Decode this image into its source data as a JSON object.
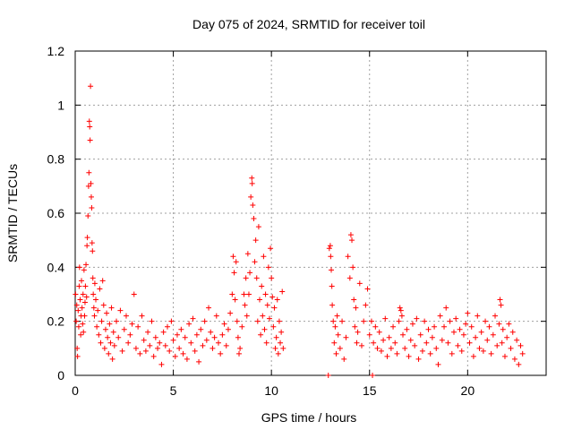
{
  "chart_data": {
    "type": "scatter",
    "title": "Day 075 of 2024, SRMTID for receiver toil",
    "xlabel": "GPS time / hours",
    "ylabel": "SRMTID / TECUs",
    "xlim": [
      0,
      24
    ],
    "ylim": [
      0,
      1.2
    ],
    "xticks": [
      0,
      5,
      10,
      15,
      20
    ],
    "xtick_labels": [
      "0",
      "5",
      "10",
      "15",
      "20"
    ],
    "yticks": [
      0,
      0.2,
      0.4,
      0.6,
      0.8,
      1,
      1.2
    ],
    "ytick_labels": [
      "0",
      "0.2",
      "0.4",
      "0.6",
      "0.8",
      "1",
      "1.2"
    ],
    "grid": true,
    "marker": "+",
    "color": "#ff0000",
    "series": [
      {
        "name": "SRMTID",
        "points": [
          [
            0.02,
            0.3
          ],
          [
            0.05,
            0.2
          ],
          [
            0.08,
            0.26
          ],
          [
            0.1,
            0.1
          ],
          [
            0.12,
            0.07
          ],
          [
            0.15,
            0.24
          ],
          [
            0.18,
            0.18
          ],
          [
            0.2,
            0.33
          ],
          [
            0.22,
            0.4
          ],
          [
            0.25,
            0.28
          ],
          [
            0.28,
            0.15
          ],
          [
            0.3,
            0.22
          ],
          [
            0.32,
            0.35
          ],
          [
            0.35,
            0.25
          ],
          [
            0.38,
            0.19
          ],
          [
            0.4,
            0.3
          ],
          [
            0.42,
            0.16
          ],
          [
            0.45,
            0.39
          ],
          [
            0.48,
            0.22
          ],
          [
            0.5,
            0.27
          ],
          [
            0.52,
            0.33
          ],
          [
            0.55,
            0.41
          ],
          [
            0.58,
            0.29
          ],
          [
            0.6,
            0.48
          ],
          [
            0.62,
            0.51
          ],
          [
            0.65,
            0.59
          ],
          [
            0.68,
            0.7
          ],
          [
            0.7,
            0.75
          ],
          [
            0.72,
            0.94
          ],
          [
            0.74,
            0.92
          ],
          [
            0.76,
            0.87
          ],
          [
            0.78,
            1.07
          ],
          [
            0.8,
            0.71
          ],
          [
            0.82,
            0.66
          ],
          [
            0.84,
            0.62
          ],
          [
            0.86,
            0.49
          ],
          [
            0.88,
            0.46
          ],
          [
            0.9,
            0.36
          ],
          [
            0.92,
            0.3
          ],
          [
            0.95,
            0.25
          ],
          [
            0.98,
            0.22
          ],
          [
            1.0,
            0.34
          ],
          [
            1.05,
            0.28
          ],
          [
            1.1,
            0.18
          ],
          [
            1.15,
            0.24
          ],
          [
            1.2,
            0.15
          ],
          [
            1.25,
            0.32
          ],
          [
            1.3,
            0.12
          ],
          [
            1.35,
            0.2
          ],
          [
            1.4,
            0.35
          ],
          [
            1.45,
            0.26
          ],
          [
            1.5,
            0.1
          ],
          [
            1.55,
            0.17
          ],
          [
            1.6,
            0.23
          ],
          [
            1.65,
            0.14
          ],
          [
            1.7,
            0.08
          ],
          [
            1.75,
            0.19
          ],
          [
            1.8,
            0.12
          ],
          [
            1.85,
            0.25
          ],
          [
            1.9,
            0.06
          ],
          [
            1.95,
            0.16
          ],
          [
            2.0,
            0.11
          ],
          [
            2.1,
            0.2
          ],
          [
            2.2,
            0.14
          ],
          [
            2.3,
            0.24
          ],
          [
            2.4,
            0.09
          ],
          [
            2.5,
            0.17
          ],
          [
            2.6,
            0.22
          ],
          [
            2.7,
            0.12
          ],
          [
            2.8,
            0.15
          ],
          [
            2.9,
            0.19
          ],
          [
            3.0,
            0.3
          ],
          [
            3.1,
            0.1
          ],
          [
            3.2,
            0.18
          ],
          [
            3.3,
            0.08
          ],
          [
            3.4,
            0.22
          ],
          [
            3.5,
            0.13
          ],
          [
            3.6,
            0.09
          ],
          [
            3.7,
            0.16
          ],
          [
            3.8,
            0.11
          ],
          [
            3.9,
            0.2
          ],
          [
            4.0,
            0.07
          ],
          [
            4.1,
            0.14
          ],
          [
            4.2,
            0.1
          ],
          [
            4.3,
            0.12
          ],
          [
            4.4,
            0.04
          ],
          [
            4.5,
            0.16
          ],
          [
            4.6,
            0.11
          ],
          [
            4.7,
            0.18
          ],
          [
            4.8,
            0.09
          ],
          [
            4.9,
            0.2
          ],
          [
            5.0,
            0.13
          ],
          [
            5.1,
            0.07
          ],
          [
            5.2,
            0.15
          ],
          [
            5.3,
            0.1
          ],
          [
            5.4,
            0.17
          ],
          [
            5.5,
            0.08
          ],
          [
            5.6,
            0.14
          ],
          [
            5.7,
            0.06
          ],
          [
            5.8,
            0.19
          ],
          [
            5.9,
            0.12
          ],
          [
            6.0,
            0.21
          ],
          [
            6.1,
            0.09
          ],
          [
            6.2,
            0.15
          ],
          [
            6.3,
            0.05
          ],
          [
            6.4,
            0.17
          ],
          [
            6.5,
            0.11
          ],
          [
            6.6,
            0.2
          ],
          [
            6.7,
            0.13
          ],
          [
            6.8,
            0.25
          ],
          [
            6.9,
            0.16
          ],
          [
            7.0,
            0.1
          ],
          [
            7.1,
            0.14
          ],
          [
            7.2,
            0.22
          ],
          [
            7.3,
            0.12
          ],
          [
            7.4,
            0.08
          ],
          [
            7.5,
            0.15
          ],
          [
            7.6,
            0.19
          ],
          [
            7.7,
            0.11
          ],
          [
            7.8,
            0.17
          ],
          [
            7.9,
            0.23
          ],
          [
            8.0,
            0.3
          ],
          [
            8.05,
            0.44
          ],
          [
            8.1,
            0.38
          ],
          [
            8.15,
            0.28
          ],
          [
            8.2,
            0.42
          ],
          [
            8.25,
            0.2
          ],
          [
            8.3,
            0.14
          ],
          [
            8.35,
            0.08
          ],
          [
            8.4,
            0.1
          ],
          [
            8.5,
            0.18
          ],
          [
            8.6,
            0.3
          ],
          [
            8.65,
            0.26
          ],
          [
            8.7,
            0.36
          ],
          [
            8.75,
            0.22
          ],
          [
            8.8,
            0.45
          ],
          [
            8.85,
            0.3
          ],
          [
            8.9,
            0.38
          ],
          [
            8.95,
            0.66
          ],
          [
            9.0,
            0.73
          ],
          [
            9.02,
            0.71
          ],
          [
            9.05,
            0.63
          ],
          [
            9.1,
            0.58
          ],
          [
            9.15,
            0.42
          ],
          [
            9.2,
            0.5
          ],
          [
            9.25,
            0.36
          ],
          [
            9.3,
            0.2
          ],
          [
            9.35,
            0.55
          ],
          [
            9.4,
            0.28
          ],
          [
            9.45,
            0.15
          ],
          [
            9.5,
            0.33
          ],
          [
            9.55,
            0.22
          ],
          [
            9.6,
            0.44
          ],
          [
            9.65,
            0.17
          ],
          [
            9.7,
            0.3
          ],
          [
            9.75,
            0.12
          ],
          [
            9.8,
            0.26
          ],
          [
            9.85,
            0.4
          ],
          [
            9.9,
            0.21
          ],
          [
            9.95,
            0.47
          ],
          [
            10.0,
            0.36
          ],
          [
            10.05,
            0.29
          ],
          [
            10.1,
            0.18
          ],
          [
            10.15,
            0.25
          ],
          [
            10.2,
            0.1
          ],
          [
            10.25,
            0.14
          ],
          [
            10.3,
            0.28
          ],
          [
            10.35,
            0.08
          ],
          [
            10.4,
            0.2
          ],
          [
            10.45,
            0.12
          ],
          [
            10.5,
            0.16
          ],
          [
            10.55,
            0.31
          ],
          [
            10.6,
            0.1
          ],
          [
            12.9,
            0.0
          ],
          [
            12.95,
            0.47
          ],
          [
            13.0,
            0.48
          ],
          [
            13.02,
            0.44
          ],
          [
            13.05,
            0.39
          ],
          [
            13.08,
            0.33
          ],
          [
            13.1,
            0.26
          ],
          [
            13.15,
            0.2
          ],
          [
            13.2,
            0.12
          ],
          [
            13.25,
            0.18
          ],
          [
            13.3,
            0.08
          ],
          [
            13.35,
            0.22
          ],
          [
            13.4,
            0.15
          ],
          [
            13.5,
            0.1
          ],
          [
            13.6,
            0.2
          ],
          [
            13.7,
            0.06
          ],
          [
            13.8,
            0.14
          ],
          [
            13.9,
            0.44
          ],
          [
            14.0,
            0.36
          ],
          [
            14.05,
            0.52
          ],
          [
            14.1,
            0.5
          ],
          [
            14.15,
            0.4
          ],
          [
            14.2,
            0.28
          ],
          [
            14.25,
            0.18
          ],
          [
            14.3,
            0.25
          ],
          [
            14.35,
            0.12
          ],
          [
            14.4,
            0.16
          ],
          [
            14.5,
            0.34
          ],
          [
            14.6,
            0.11
          ],
          [
            14.7,
            0.2
          ],
          [
            14.8,
            0.26
          ],
          [
            14.9,
            0.32
          ],
          [
            15.0,
            0.15
          ],
          [
            15.1,
            0.2
          ],
          [
            15.15,
            0.0
          ],
          [
            15.2,
            0.12
          ],
          [
            15.3,
            0.18
          ],
          [
            15.4,
            0.1
          ],
          [
            15.5,
            0.16
          ],
          [
            15.6,
            0.09
          ],
          [
            15.7,
            0.13
          ],
          [
            15.8,
            0.21
          ],
          [
            15.9,
            0.07
          ],
          [
            16.0,
            0.14
          ],
          [
            16.1,
            0.1
          ],
          [
            16.2,
            0.18
          ],
          [
            16.3,
            0.12
          ],
          [
            16.4,
            0.08
          ],
          [
            16.5,
            0.2
          ],
          [
            16.55,
            0.25
          ],
          [
            16.6,
            0.24
          ],
          [
            16.65,
            0.22
          ],
          [
            16.7,
            0.15
          ],
          [
            16.8,
            0.1
          ],
          [
            16.9,
            0.17
          ],
          [
            17.0,
            0.07
          ],
          [
            17.1,
            0.13
          ],
          [
            17.2,
            0.19
          ],
          [
            17.3,
            0.11
          ],
          [
            17.4,
            0.21
          ],
          [
            17.5,
            0.06
          ],
          [
            17.6,
            0.15
          ],
          [
            17.7,
            0.09
          ],
          [
            17.8,
            0.2
          ],
          [
            17.9,
            0.12
          ],
          [
            18.0,
            0.17
          ],
          [
            18.1,
            0.08
          ],
          [
            18.2,
            0.14
          ],
          [
            18.3,
            0.18
          ],
          [
            18.4,
            0.1
          ],
          [
            18.5,
            0.04
          ],
          [
            18.6,
            0.22
          ],
          [
            18.7,
            0.13
          ],
          [
            18.8,
            0.18
          ],
          [
            18.9,
            0.25
          ],
          [
            19.0,
            0.12
          ],
          [
            19.1,
            0.2
          ],
          [
            19.2,
            0.08
          ],
          [
            19.3,
            0.16
          ],
          [
            19.4,
            0.21
          ],
          [
            19.5,
            0.11
          ],
          [
            19.6,
            0.17
          ],
          [
            19.7,
            0.09
          ],
          [
            19.8,
            0.15
          ],
          [
            19.9,
            0.19
          ],
          [
            20.0,
            0.23
          ],
          [
            20.1,
            0.12
          ],
          [
            20.2,
            0.18
          ],
          [
            20.3,
            0.07
          ],
          [
            20.4,
            0.14
          ],
          [
            20.5,
            0.22
          ],
          [
            20.6,
            0.1
          ],
          [
            20.7,
            0.16
          ],
          [
            20.8,
            0.09
          ],
          [
            20.9,
            0.2
          ],
          [
            21.0,
            0.13
          ],
          [
            21.1,
            0.18
          ],
          [
            21.2,
            0.08
          ],
          [
            21.3,
            0.15
          ],
          [
            21.4,
            0.22
          ],
          [
            21.5,
            0.11
          ],
          [
            21.6,
            0.19
          ],
          [
            21.65,
            0.28
          ],
          [
            21.7,
            0.26
          ],
          [
            21.75,
            0.12
          ],
          [
            21.8,
            0.17
          ],
          [
            21.9,
            0.07
          ],
          [
            22.0,
            0.14
          ],
          [
            22.1,
            0.19
          ],
          [
            22.2,
            0.1
          ],
          [
            22.3,
            0.16
          ],
          [
            22.4,
            0.06
          ],
          [
            22.5,
            0.13
          ],
          [
            22.6,
            0.04
          ],
          [
            22.7,
            0.11
          ],
          [
            22.8,
            0.08
          ]
        ]
      }
    ]
  }
}
